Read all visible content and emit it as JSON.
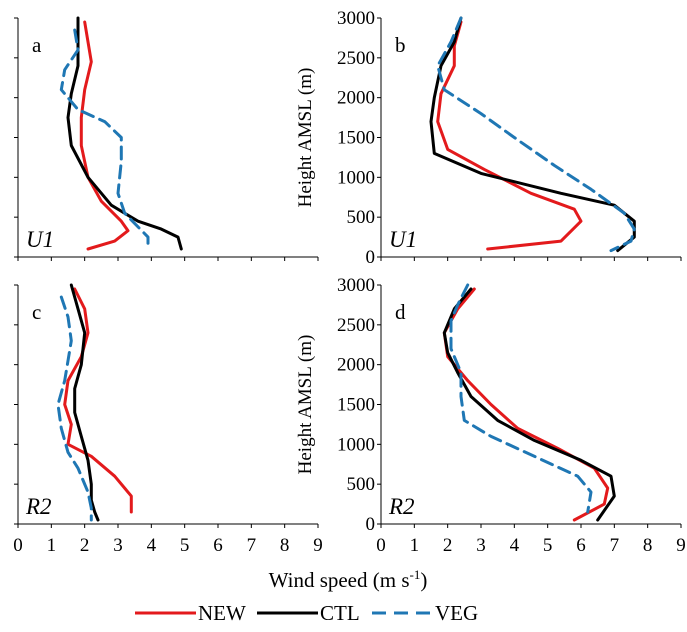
{
  "chart_data": [
    {
      "type": "line",
      "panel_letter": "a",
      "case_label": "U1",
      "xlabel": "",
      "ylabel": "",
      "xlim": [
        0,
        9
      ],
      "ylim": [
        0,
        3000
      ],
      "y_tick_labels_shown": false,
      "x_tick_labels_shown": false,
      "series": [
        {
          "name": "NEW",
          "points": [
            [
              2.0,
              2950
            ],
            [
              2.1,
              2700
            ],
            [
              2.2,
              2450
            ],
            [
              2.0,
              2100
            ],
            [
              1.9,
              1750
            ],
            [
              1.9,
              1400
            ],
            [
              2.1,
              1000
            ],
            [
              2.5,
              700
            ],
            [
              3.1,
              450
            ],
            [
              3.3,
              330
            ],
            [
              2.9,
              200
            ],
            [
              2.1,
              100
            ]
          ]
        },
        {
          "name": "CTL",
          "points": [
            [
              1.8,
              3000
            ],
            [
              1.8,
              2700
            ],
            [
              1.8,
              2400
            ],
            [
              1.6,
              2050
            ],
            [
              1.5,
              1750
            ],
            [
              1.6,
              1400
            ],
            [
              2.1,
              1000
            ],
            [
              2.8,
              650
            ],
            [
              3.6,
              450
            ],
            [
              4.3,
              350
            ],
            [
              4.8,
              250
            ],
            [
              4.9,
              100
            ]
          ]
        },
        {
          "name": "VEG",
          "points": [
            [
              1.7,
              2850
            ],
            [
              1.8,
              2600
            ],
            [
              1.4,
              2350
            ],
            [
              1.3,
              2100
            ],
            [
              1.8,
              1850
            ],
            [
              2.6,
              1700
            ],
            [
              3.1,
              1500
            ],
            [
              3.1,
              1200
            ],
            [
              3.0,
              800
            ],
            [
              3.2,
              550
            ],
            [
              3.9,
              250
            ],
            [
              3.9,
              100
            ]
          ]
        }
      ]
    },
    {
      "type": "line",
      "panel_letter": "b",
      "case_label": "U1",
      "xlabel": "",
      "ylabel": "Height AMSL (m)",
      "xlim": [
        0,
        9
      ],
      "ylim": [
        0,
        3000
      ],
      "y_ticks": [
        0,
        500,
        1000,
        1500,
        2000,
        2500,
        3000
      ],
      "x_tick_labels_shown": false,
      "series": [
        {
          "name": "NEW",
          "points": [
            [
              2.4,
              2950
            ],
            [
              2.2,
              2650
            ],
            [
              2.2,
              2400
            ],
            [
              1.8,
              2050
            ],
            [
              1.7,
              1700
            ],
            [
              2.0,
              1350
            ],
            [
              3.1,
              1100
            ],
            [
              4.5,
              800
            ],
            [
              5.8,
              600
            ],
            [
              6.0,
              450
            ],
            [
              5.4,
              200
            ],
            [
              3.2,
              100
            ]
          ]
        },
        {
          "name": "CTL",
          "points": [
            [
              2.4,
              3000
            ],
            [
              2.2,
              2700
            ],
            [
              1.8,
              2400
            ],
            [
              1.6,
              2000
            ],
            [
              1.5,
              1700
            ],
            [
              1.6,
              1300
            ],
            [
              3.0,
              1050
            ],
            [
              5.4,
              800
            ],
            [
              7.0,
              650
            ],
            [
              7.6,
              450
            ],
            [
              7.6,
              250
            ],
            [
              7.1,
              80
            ]
          ]
        },
        {
          "name": "VEG",
          "points": [
            [
              2.4,
              3000
            ],
            [
              2.1,
              2700
            ],
            [
              1.7,
              2400
            ],
            [
              1.9,
              2100
            ],
            [
              3.0,
              1800
            ],
            [
              4.0,
              1500
            ],
            [
              5.2,
              1150
            ],
            [
              6.3,
              850
            ],
            [
              7.3,
              550
            ],
            [
              7.6,
              350
            ],
            [
              7.5,
              200
            ],
            [
              6.9,
              80
            ]
          ]
        }
      ]
    },
    {
      "type": "line",
      "panel_letter": "c",
      "case_label": "R2",
      "xlabel": "",
      "ylabel": "",
      "xlim": [
        0,
        9
      ],
      "ylim": [
        0,
        3000
      ],
      "y_tick_labels_shown": false,
      "x_ticks": [
        0,
        1,
        2,
        3,
        4,
        5,
        6,
        7,
        8,
        9
      ],
      "series": [
        {
          "name": "NEW",
          "points": [
            [
              1.7,
              2950
            ],
            [
              2.0,
              2700
            ],
            [
              2.1,
              2400
            ],
            [
              1.9,
              2100
            ],
            [
              1.5,
              1800
            ],
            [
              1.4,
              1500
            ],
            [
              1.6,
              1250
            ],
            [
              1.5,
              1000
            ],
            [
              2.2,
              850
            ],
            [
              2.9,
              600
            ],
            [
              3.4,
              350
            ],
            [
              3.4,
              150
            ]
          ]
        },
        {
          "name": "CTL",
          "points": [
            [
              1.6,
              3000
            ],
            [
              1.8,
              2700
            ],
            [
              2.0,
              2400
            ],
            [
              1.9,
              2000
            ],
            [
              1.7,
              1700
            ],
            [
              1.7,
              1400
            ],
            [
              1.9,
              1100
            ],
            [
              2.1,
              800
            ],
            [
              2.2,
              500
            ],
            [
              2.2,
              300
            ],
            [
              2.3,
              150
            ],
            [
              2.4,
              50
            ]
          ]
        },
        {
          "name": "VEG",
          "points": [
            [
              1.3,
              2850
            ],
            [
              1.5,
              2600
            ],
            [
              1.6,
              2300
            ],
            [
              1.5,
              2050
            ],
            [
              1.4,
              1800
            ],
            [
              1.2,
              1500
            ],
            [
              1.3,
              1200
            ],
            [
              1.5,
              900
            ],
            [
              1.8,
              700
            ],
            [
              2.1,
              400
            ],
            [
              2.2,
              200
            ],
            [
              2.2,
              50
            ]
          ]
        }
      ]
    },
    {
      "type": "line",
      "panel_letter": "d",
      "case_label": "R2",
      "xlabel": "",
      "ylabel": "Height AMSL (m)",
      "xlim": [
        0,
        9
      ],
      "ylim": [
        0,
        3000
      ],
      "y_ticks": [
        0,
        500,
        1000,
        1500,
        2000,
        2500,
        3000
      ],
      "x_ticks": [
        0,
        1,
        2,
        3,
        4,
        5,
        6,
        7,
        8,
        9
      ],
      "series": [
        {
          "name": "NEW",
          "points": [
            [
              2.8,
              2950
            ],
            [
              2.3,
              2700
            ],
            [
              1.9,
              2400
            ],
            [
              2.0,
              2100
            ],
            [
              2.6,
              1800
            ],
            [
              3.3,
              1500
            ],
            [
              4.1,
              1200
            ],
            [
              5.3,
              950
            ],
            [
              6.4,
              700
            ],
            [
              6.8,
              450
            ],
            [
              6.7,
              250
            ],
            [
              5.8,
              50
            ]
          ]
        },
        {
          "name": "CTL",
          "points": [
            [
              2.7,
              2950
            ],
            [
              2.2,
              2700
            ],
            [
              1.9,
              2400
            ],
            [
              2.0,
              2150
            ],
            [
              2.3,
              1900
            ],
            [
              2.7,
              1600
            ],
            [
              3.5,
              1300
            ],
            [
              4.6,
              1050
            ],
            [
              6.0,
              800
            ],
            [
              6.9,
              600
            ],
            [
              7.0,
              350
            ],
            [
              6.5,
              50
            ]
          ]
        },
        {
          "name": "VEG",
          "points": [
            [
              2.6,
              3000
            ],
            [
              2.3,
              2750
            ],
            [
              2.1,
              2550
            ],
            [
              2.1,
              2200
            ],
            [
              2.4,
              1900
            ],
            [
              2.4,
              1600
            ],
            [
              2.5,
              1300
            ],
            [
              3.3,
              1100
            ],
            [
              4.6,
              850
            ],
            [
              5.9,
              600
            ],
            [
              6.3,
              400
            ],
            [
              6.2,
              150
            ]
          ]
        }
      ]
    }
  ],
  "shared": {
    "x_axis_title_main": "Wind speed (m s",
    "x_axis_title_exponent": "-1",
    "x_axis_title_close": ")",
    "legend": [
      {
        "name": "NEW",
        "color": "#e31a1c",
        "dash": "solid"
      },
      {
        "name": "CTL",
        "color": "#000000",
        "dash": "solid"
      },
      {
        "name": "VEG",
        "color": "#1f77b4",
        "dash": "dashed"
      }
    ]
  }
}
